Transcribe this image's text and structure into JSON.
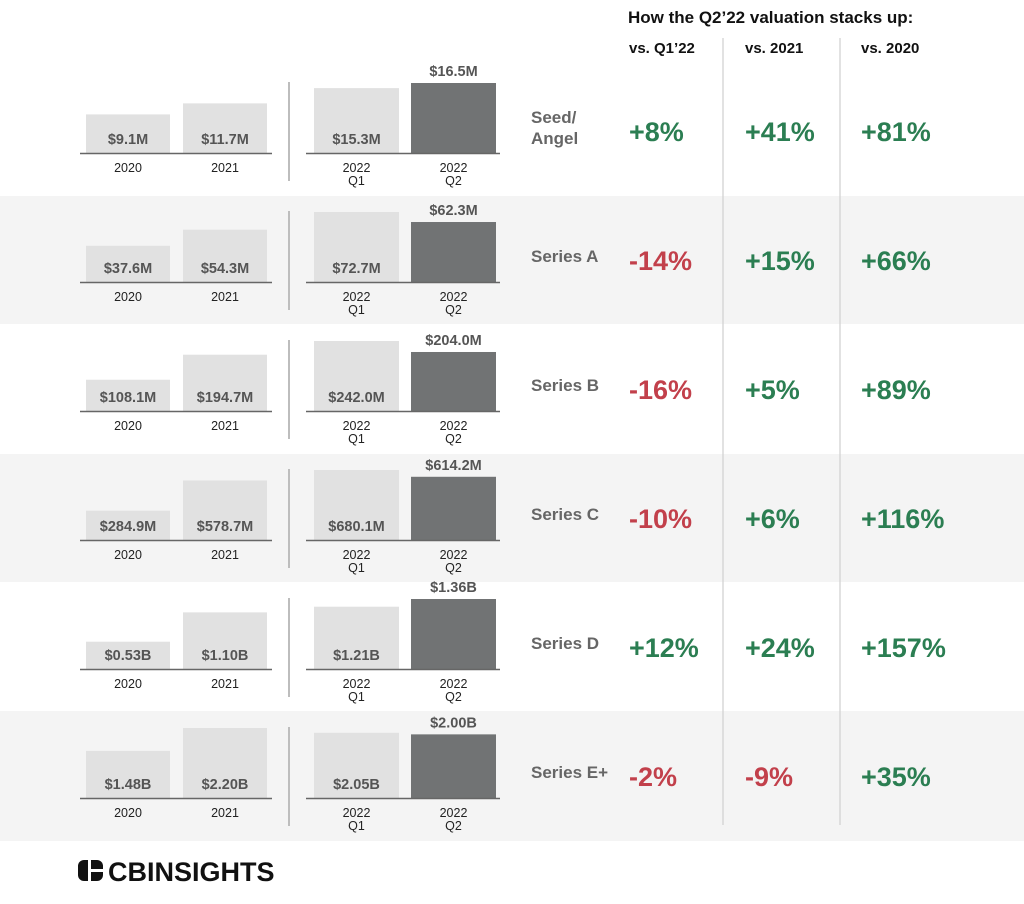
{
  "header": {
    "title": "How the Q2’22 valuation stacks up:",
    "columns": [
      "vs. Q1’22",
      "vs. 2021",
      "vs. 2020"
    ]
  },
  "colors": {
    "annual_bar": "#e1e1e1",
    "q1_bar": "#e1e1e1",
    "q2_bar": "#717374",
    "row_band": "#f4f4f4",
    "label_dark": "#555555",
    "label_light": "#ffffff",
    "positive": "#2b7e52",
    "negative": "#c2404b",
    "row_name": "#666666"
  },
  "category_labels": {
    "annual": [
      "2020",
      "2021"
    ],
    "quarterly": [
      "2022\nQ1",
      "2022\nQ2"
    ]
  },
  "chart_data": {
    "type": "bar",
    "unit": "USD median valuation",
    "rows": [
      {
        "stage": "Seed/\nAngel",
        "annual": {
          "2020": 9.1,
          "2021": 11.7
        },
        "quarterly": {
          "Q1": 15.3,
          "Q2": 16.5
        },
        "labels": [
          "$9.1M",
          "$11.7M",
          "$15.3M",
          "$16.5M"
        ],
        "scale": "M",
        "changes": [
          "+8%",
          "+41%",
          "+81%"
        ]
      },
      {
        "stage": "Series A",
        "annual": {
          "2020": 37.6,
          "2021": 54.3
        },
        "quarterly": {
          "Q1": 72.7,
          "Q2": 62.3
        },
        "labels": [
          "$37.6M",
          "$54.3M",
          "$72.7M",
          "$62.3M"
        ],
        "scale": "M",
        "changes": [
          "-14%",
          "+15%",
          "+66%"
        ]
      },
      {
        "stage": "Series B",
        "annual": {
          "2020": 108.1,
          "2021": 194.7
        },
        "quarterly": {
          "Q1": 242.0,
          "Q2": 204.0
        },
        "labels": [
          "$108.1M",
          "$194.7M",
          "$242.0M",
          "$204.0M"
        ],
        "scale": "M",
        "changes": [
          "-16%",
          "+5%",
          "+89%"
        ]
      },
      {
        "stage": "Series C",
        "annual": {
          "2020": 284.9,
          "2021": 578.7
        },
        "quarterly": {
          "Q1": 680.1,
          "Q2": 614.2
        },
        "labels": [
          "$284.9M",
          "$578.7M",
          "$680.1M",
          "$614.2M"
        ],
        "scale": "M",
        "changes": [
          "-10%",
          "+6%",
          "+116%"
        ]
      },
      {
        "stage": "Series D",
        "annual": {
          "2020": 0.53,
          "2021": 1.1
        },
        "quarterly": {
          "Q1": 1.21,
          "Q2": 1.36
        },
        "labels": [
          "$0.53B",
          "$1.10B",
          "$1.21B",
          "$1.36B"
        ],
        "scale": "B",
        "changes": [
          "+12%",
          "+24%",
          "+157%"
        ]
      },
      {
        "stage": "Series E+",
        "annual": {
          "2020": 1.48,
          "2021": 2.2
        },
        "quarterly": {
          "Q1": 2.05,
          "Q2": 2.0
        },
        "labels": [
          "$1.48B",
          "$2.20B",
          "$2.05B",
          "$2.00B"
        ],
        "scale": "B",
        "changes": [
          "-2%",
          "-9%",
          "+35%"
        ]
      }
    ]
  },
  "logo": {
    "text": "CBINSIGHTS"
  }
}
